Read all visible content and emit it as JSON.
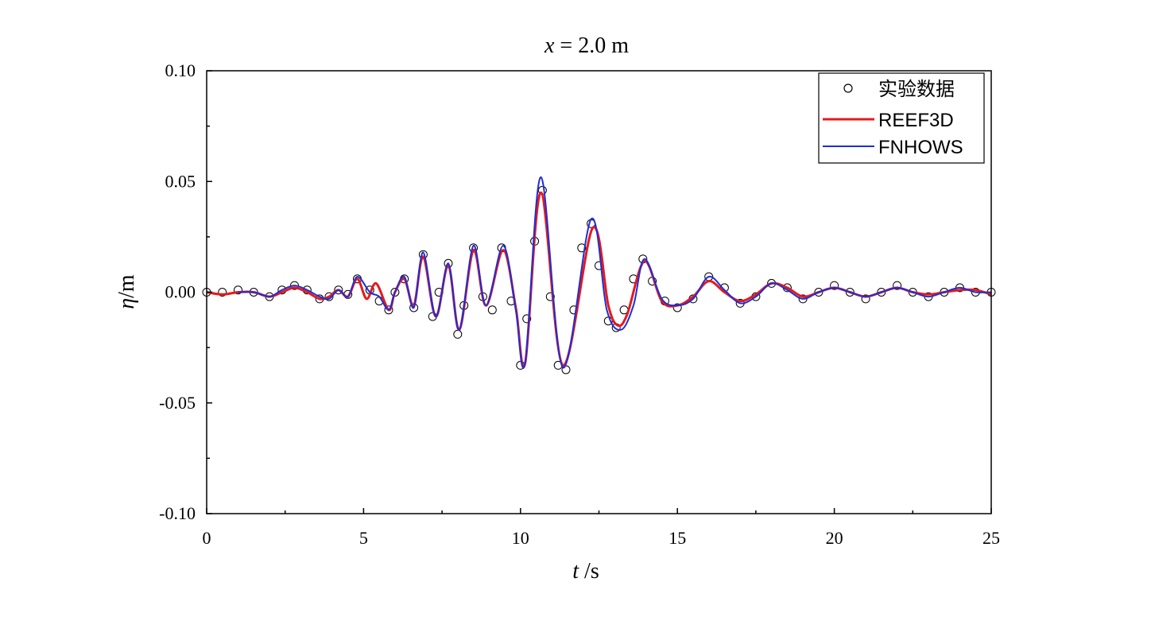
{
  "chart_data": {
    "type": "line",
    "title": {
      "italic": "x",
      "rest": " = 2.0 m"
    },
    "xlabel": {
      "italic": "t",
      "rest": " /s"
    },
    "ylabel": {
      "italic": "η",
      "rest": "/m"
    },
    "xlim": [
      0,
      25
    ],
    "ylim": [
      -0.1,
      0.1
    ],
    "xticks": [
      0,
      5,
      10,
      15,
      20,
      25
    ],
    "xtick_labels": [
      "0",
      "5",
      "10",
      "15",
      "20",
      "25"
    ],
    "yticks": [
      0.1,
      0.05,
      0.0,
      -0.05,
      -0.1
    ],
    "ytick_labels": [
      "0.10",
      "0.05",
      "0.00",
      "-0.05",
      "-0.10"
    ],
    "grid": false,
    "legend_position": "top-right",
    "series": [
      {
        "name": "实验数据",
        "style": "markers",
        "color": "#000000",
        "x": [
          0.0,
          0.5,
          1.0,
          1.5,
          2.0,
          2.4,
          2.8,
          3.2,
          3.6,
          3.9,
          4.2,
          4.5,
          4.8,
          5.2,
          5.5,
          5.8,
          6.0,
          6.3,
          6.6,
          6.9,
          7.2,
          7.4,
          7.7,
          8.0,
          8.2,
          8.5,
          8.8,
          9.1,
          9.4,
          9.7,
          10.0,
          10.2,
          10.45,
          10.7,
          10.95,
          11.2,
          11.45,
          11.7,
          11.95,
          12.25,
          12.5,
          12.8,
          13.05,
          13.3,
          13.6,
          13.9,
          14.2,
          14.6,
          15.0,
          15.5,
          16.0,
          16.5,
          17.0,
          17.5,
          18.0,
          18.5,
          19.0,
          19.5,
          20.0,
          20.5,
          21.0,
          21.5,
          22.0,
          22.5,
          23.0,
          23.5,
          24.0,
          24.5,
          25.0
        ],
        "y": [
          0.0,
          0.0,
          0.001,
          0.0,
          -0.002,
          0.001,
          0.003,
          0.001,
          -0.003,
          -0.002,
          0.001,
          -0.001,
          0.006,
          0.001,
          -0.004,
          -0.008,
          0.0,
          0.006,
          -0.007,
          0.017,
          -0.011,
          0.0,
          0.013,
          -0.019,
          -0.006,
          0.02,
          -0.002,
          -0.008,
          0.02,
          -0.004,
          -0.033,
          -0.012,
          0.023,
          0.046,
          -0.002,
          -0.033,
          -0.035,
          -0.008,
          0.02,
          0.031,
          0.012,
          -0.013,
          -0.016,
          -0.008,
          0.006,
          0.015,
          0.005,
          -0.004,
          -0.007,
          -0.003,
          0.007,
          0.002,
          -0.005,
          -0.002,
          0.004,
          0.002,
          -0.003,
          0.0,
          0.003,
          0.0,
          -0.003,
          0.0,
          0.003,
          0.0,
          -0.002,
          0.0,
          0.002,
          0.0,
          0.0
        ]
      },
      {
        "name": "REEF3D",
        "style": "line",
        "color": "#e41a1c",
        "x": [
          0.0,
          0.5,
          1.0,
          1.5,
          2.0,
          2.4,
          2.8,
          3.2,
          3.6,
          3.9,
          4.2,
          4.5,
          4.8,
          5.1,
          5.4,
          5.8,
          6.0,
          6.3,
          6.6,
          6.9,
          7.3,
          7.7,
          8.05,
          8.5,
          8.9,
          9.45,
          9.85,
          10.15,
          10.65,
          11.35,
          12.3,
          12.8,
          13.1,
          13.4,
          13.95,
          14.5,
          15.0,
          15.5,
          16.0,
          16.5,
          17.0,
          17.5,
          18.0,
          18.5,
          19.0,
          19.5,
          20.0,
          20.5,
          21.0,
          21.5,
          22.0,
          22.5,
          23.0,
          23.5,
          24.0,
          24.5,
          25.0
        ],
        "y": [
          0.0,
          -0.001,
          0.0,
          0.0,
          -0.002,
          0.0,
          0.002,
          0.0,
          -0.003,
          -0.002,
          0.001,
          -0.002,
          0.006,
          -0.003,
          0.004,
          -0.008,
          0.0,
          0.006,
          -0.006,
          0.016,
          -0.011,
          0.012,
          -0.017,
          0.019,
          -0.006,
          0.019,
          -0.007,
          -0.032,
          0.045,
          -0.033,
          0.029,
          -0.006,
          -0.015,
          -0.01,
          0.014,
          -0.004,
          -0.006,
          -0.002,
          0.005,
          0.0,
          -0.004,
          -0.001,
          0.004,
          0.002,
          -0.002,
          0.0,
          0.002,
          0.0,
          -0.002,
          0.0,
          0.002,
          0.0,
          -0.001,
          0.0,
          0.001,
          0.001,
          -0.001
        ]
      },
      {
        "name": "FNHOWS",
        "style": "line",
        "color": "#1f2dd8",
        "x": [
          1.0,
          1.5,
          2.0,
          2.4,
          2.8,
          3.2,
          3.6,
          3.9,
          4.2,
          4.5,
          4.8,
          5.2,
          5.5,
          5.8,
          6.0,
          6.3,
          6.6,
          6.9,
          7.3,
          7.7,
          8.05,
          8.5,
          8.9,
          9.45,
          9.85,
          10.15,
          10.65,
          11.35,
          12.25,
          12.75,
          13.2,
          13.6,
          13.95,
          14.5,
          15.0,
          15.5,
          16.0,
          16.5,
          17.0,
          17.5,
          18.0,
          18.5,
          19.0,
          19.5,
          20.0,
          20.5,
          21.0,
          21.5,
          22.0,
          22.5,
          23.0,
          23.5,
          24.0,
          24.5,
          25.0
        ],
        "y": [
          0.0,
          0.0,
          -0.002,
          0.001,
          0.003,
          0.001,
          -0.002,
          -0.003,
          0.001,
          -0.002,
          0.007,
          0.0,
          -0.002,
          -0.008,
          0.0,
          0.007,
          -0.007,
          0.018,
          -0.011,
          0.013,
          -0.017,
          0.021,
          -0.006,
          0.021,
          -0.008,
          -0.032,
          0.052,
          -0.034,
          0.033,
          -0.008,
          -0.017,
          -0.006,
          0.015,
          -0.003,
          -0.006,
          -0.003,
          0.007,
          0.001,
          -0.005,
          -0.002,
          0.004,
          0.001,
          -0.003,
          0.0,
          0.002,
          0.0,
          -0.002,
          0.0,
          0.002,
          0.0,
          -0.002,
          0.0,
          0.002,
          0.0,
          0.0
        ]
      }
    ]
  }
}
